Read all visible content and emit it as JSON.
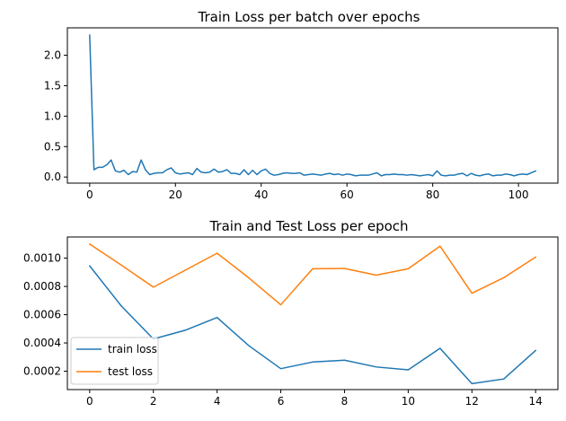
{
  "chart_data": [
    {
      "type": "line",
      "title": "Train Loss per batch over epochs",
      "xlabel": "",
      "ylabel": "",
      "xlim": [
        -5.2,
        109.2
      ],
      "ylim": [
        -0.1,
        2.45
      ],
      "xticks": [
        "0",
        "20",
        "40",
        "60",
        "80",
        "100"
      ],
      "yticks": [
        "0.0",
        "0.5",
        "1.0",
        "1.5",
        "2.0"
      ],
      "grid": false,
      "series": [
        {
          "color": "#1f77b4",
          "x": [
            0,
            1,
            2,
            3,
            4,
            5,
            6,
            7,
            8,
            9,
            10,
            11,
            12,
            13,
            14,
            15,
            16,
            17,
            18,
            19,
            20,
            21,
            22,
            23,
            24,
            25,
            26,
            27,
            28,
            29,
            30,
            31,
            32,
            33,
            34,
            35,
            36,
            37,
            38,
            39,
            40,
            41,
            42,
            43,
            44,
            45,
            46,
            47,
            48,
            49,
            50,
            51,
            52,
            53,
            54,
            55,
            56,
            57,
            58,
            59,
            60,
            61,
            62,
            63,
            64,
            65,
            66,
            67,
            68,
            69,
            70,
            71,
            72,
            73,
            74,
            75,
            76,
            77,
            78,
            79,
            80,
            81,
            82,
            83,
            84,
            85,
            86,
            87,
            88,
            89,
            90,
            91,
            92,
            93,
            94,
            95,
            96,
            97,
            98,
            99,
            100,
            101,
            102,
            103,
            104
          ],
          "values": [
            2.33,
            0.12,
            0.16,
            0.16,
            0.2,
            0.28,
            0.1,
            0.08,
            0.11,
            0.04,
            0.09,
            0.08,
            0.28,
            0.12,
            0.04,
            0.06,
            0.07,
            0.07,
            0.12,
            0.15,
            0.07,
            0.05,
            0.06,
            0.07,
            0.04,
            0.14,
            0.08,
            0.07,
            0.08,
            0.13,
            0.08,
            0.09,
            0.12,
            0.06,
            0.06,
            0.04,
            0.12,
            0.04,
            0.11,
            0.04,
            0.1,
            0.13,
            0.06,
            0.03,
            0.04,
            0.06,
            0.07,
            0.06,
            0.06,
            0.07,
            0.03,
            0.04,
            0.05,
            0.04,
            0.03,
            0.05,
            0.06,
            0.04,
            0.05,
            0.03,
            0.05,
            0.04,
            0.02,
            0.03,
            0.03,
            0.03,
            0.05,
            0.07,
            0.02,
            0.04,
            0.04,
            0.05,
            0.04,
            0.04,
            0.03,
            0.04,
            0.03,
            0.02,
            0.03,
            0.04,
            0.02,
            0.1,
            0.03,
            0.02,
            0.03,
            0.03,
            0.05,
            0.06,
            0.02,
            0.06,
            0.03,
            0.02,
            0.04,
            0.05,
            0.02,
            0.03,
            0.03,
            0.05,
            0.04,
            0.02,
            0.04,
            0.05,
            0.04,
            0.07,
            0.1
          ]
        }
      ]
    },
    {
      "type": "line",
      "title": "Train and Test Loss per epoch",
      "xlabel": "",
      "ylabel": "",
      "xlim": [
        -0.7,
        14.7
      ],
      "ylim": [
        7e-05,
        0.00115
      ],
      "xticks": [
        "0",
        "2",
        "4",
        "6",
        "8",
        "10",
        "12",
        "14"
      ],
      "yticks": [
        "0.0002",
        "0.0004",
        "0.0006",
        "0.0008",
        "0.0010"
      ],
      "grid": false,
      "legend": "lower-left",
      "categories": [
        0,
        1,
        2,
        3,
        4,
        5,
        6,
        7,
        8,
        9,
        10,
        11,
        12,
        13,
        14
      ],
      "series": [
        {
          "name": "train loss",
          "color": "#1f77b4",
          "values": [
            0.000945,
            0.00066,
            0.000428,
            0.00049,
            0.00058,
            0.00038,
            0.000218,
            0.000265,
            0.000278,
            0.00023,
            0.00021,
            0.000362,
            0.000112,
            0.000145,
            0.000347
          ]
        },
        {
          "name": "test loss",
          "color": "#ff7f0e",
          "values": [
            0.0011,
            0.00095,
            0.000795,
            0.000915,
            0.001035,
            0.00086,
            0.00067,
            0.000925,
            0.000927,
            0.00088,
            0.000925,
            0.001085,
            0.000752,
            0.000862,
            0.001008
          ]
        }
      ]
    }
  ]
}
